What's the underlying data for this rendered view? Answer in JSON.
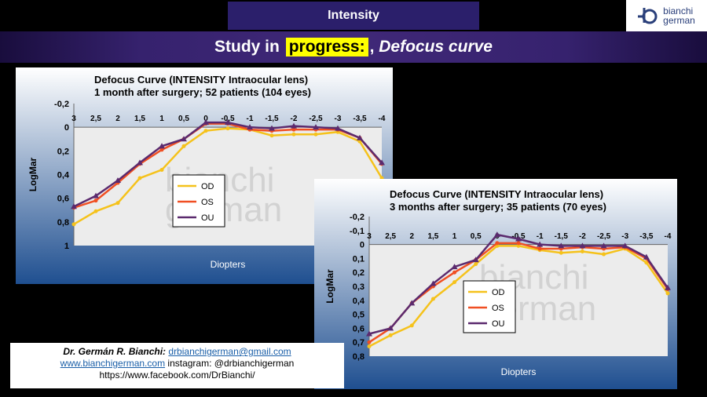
{
  "header": {
    "title": "Intensity",
    "logo_line1": "bianchi",
    "logo_line2": "german"
  },
  "banner": {
    "part1": "Study in",
    "highlight": "progress:",
    "part2": ",",
    "italic": "Defocus curve"
  },
  "watermark": {
    "line1": "bianchi",
    "line2": "german"
  },
  "contact": {
    "name": "Dr. Germán R. Bianchi:",
    "email": "drbianchigerman@gmail.com",
    "website": "www.bianchigerman.com",
    "instagram": "instagram: @drbianchigerman",
    "facebook": "https://www.facebook.com/DrBianchi/"
  },
  "colors": {
    "OD": "#f5c21b",
    "OS": "#f04f23",
    "OU": "#5b2a6e",
    "panel_top": "#ffffff",
    "panel_bottom": "#1f4f90"
  },
  "chart_data": [
    {
      "type": "line",
      "title_line1": "Defocus Curve (INTENSITY Intraocular lens)",
      "title_line2": "1 month after surgery; 52 patients (104 eyes)",
      "xlabel": "Diopters",
      "ylabel": "LogMar",
      "x_tick_labels": [
        "3",
        "2,5",
        "2",
        "1,5",
        "1",
        "0,5",
        "0",
        "-0,5",
        "-1",
        "-1,5",
        "-2",
        "-2,5",
        "-3",
        "-3,5",
        "-4"
      ],
      "x": [
        3,
        2.5,
        2,
        1.5,
        1,
        0.5,
        0,
        -0.5,
        -1,
        -1.5,
        -2,
        -2.5,
        -3,
        -3.5,
        -4
      ],
      "y_ticks": [
        -0.2,
        0,
        0.2,
        0.4,
        0.6,
        0.8,
        1
      ],
      "y_tick_labels": [
        "-0,2",
        "0",
        "0,2",
        "0,4",
        "0,6",
        "0,8",
        "1"
      ],
      "ylim": [
        -0.2,
        1
      ],
      "y_inverted": true,
      "legend": "center",
      "series": [
        {
          "name": "OD",
          "values": [
            0.82,
            0.71,
            0.64,
            0.43,
            0.36,
            0.16,
            0.03,
            0.01,
            0.02,
            0.07,
            0.06,
            0.06,
            0.04,
            0.12,
            0.43
          ]
        },
        {
          "name": "OS",
          "values": [
            0.68,
            0.62,
            0.47,
            0.31,
            0.19,
            0.1,
            -0.03,
            -0.03,
            0.02,
            0.03,
            0.02,
            0.02,
            0.02,
            0.09,
            0.31
          ]
        },
        {
          "name": "OU",
          "values": [
            0.67,
            0.58,
            0.45,
            0.3,
            0.16,
            0.1,
            -0.04,
            -0.04,
            0.0,
            0.01,
            -0.01,
            0.0,
            0.01,
            0.09,
            0.3
          ]
        }
      ]
    },
    {
      "type": "line",
      "title_line1": "Defocus Curve (INTENSITY Intraocular lens)",
      "title_line2": "3 months after surgery; 35 patients (70 eyes)",
      "xlabel": "Diopters",
      "ylabel": "LogMar",
      "x_tick_labels": [
        "3",
        "2,5",
        "2",
        "1,5",
        "1",
        "0,5",
        "0",
        "-0,5",
        "-1",
        "-1,5",
        "-2",
        "-2,5",
        "-3",
        "-3,5",
        "-4"
      ],
      "x": [
        3,
        2.5,
        2,
        1.5,
        1,
        0.5,
        0,
        -0.5,
        -1,
        -1.5,
        -2,
        -2.5,
        -3,
        -3.5,
        -4
      ],
      "y_ticks": [
        -0.2,
        -0.1,
        0,
        0.1,
        0.2,
        0.3,
        0.4,
        0.5,
        0.6,
        0.7,
        0.8
      ],
      "y_tick_labels": [
        "-0,2",
        "-0,1",
        "0",
        "0,1",
        "0,2",
        "0,3",
        "0,4",
        "0,5",
        "0,6",
        "0,7",
        "0,8"
      ],
      "ylim": [
        -0.2,
        0.8
      ],
      "y_inverted": true,
      "legend": "center",
      "series": [
        {
          "name": "OD",
          "values": [
            0.73,
            0.65,
            0.58,
            0.39,
            0.27,
            0.14,
            0.01,
            0.01,
            0.04,
            0.06,
            0.05,
            0.07,
            0.03,
            0.13,
            0.35
          ]
        },
        {
          "name": "OS",
          "values": [
            0.7,
            0.6,
            0.42,
            0.3,
            0.2,
            0.11,
            -0.01,
            -0.01,
            0.03,
            0.03,
            0.02,
            0.03,
            0.02,
            0.1,
            0.32
          ]
        },
        {
          "name": "OU",
          "values": [
            0.64,
            0.6,
            0.42,
            0.28,
            0.16,
            0.11,
            -0.07,
            -0.04,
            0.0,
            0.01,
            0.01,
            0.01,
            0.01,
            0.09,
            0.31
          ]
        }
      ]
    }
  ]
}
